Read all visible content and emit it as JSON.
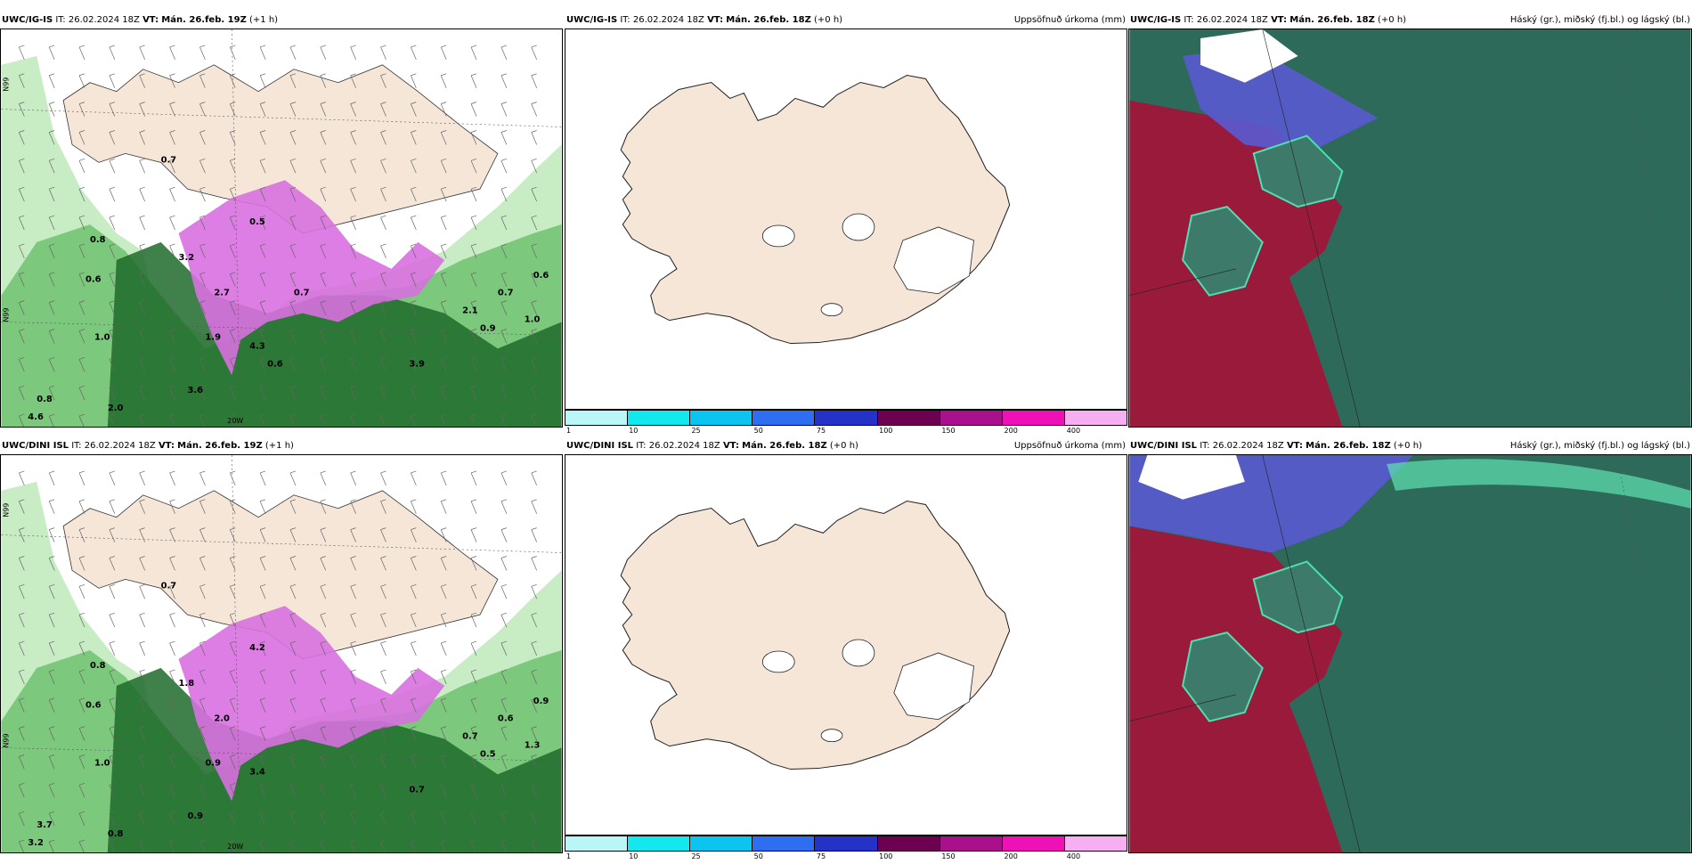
{
  "panels": [
    {
      "id": "ig-precip",
      "model": "UWC/IG-IS",
      "it_label": "IT:",
      "it_value": "26.02.2024 18Z",
      "vt_label": "VT:",
      "vt_value": "Mán. 26.feb. 19Z",
      "lead": "(+1 h)",
      "right_title": ""
    },
    {
      "id": "ig-accum",
      "model": "UWC/IG-IS",
      "it_label": "IT:",
      "it_value": "26.02.2024 18Z",
      "vt_label": "VT:",
      "vt_value": "Mán. 26.feb. 18Z",
      "lead": "(+0 h)",
      "right_title": "Uppsöfnuð úrkoma (mm)"
    },
    {
      "id": "ig-clouds",
      "model": "UWC/IG-IS",
      "it_label": "IT:",
      "it_value": "26.02.2024 18Z",
      "vt_label": "VT:",
      "vt_value": "Mán. 26.feb. 18Z",
      "lead": "(+0 h)",
      "right_title": "Háský (gr.), miðský (fj.bl.) og lágský (bl.)"
    },
    {
      "id": "dini-precip",
      "model": "UWC/DINI ISL",
      "it_label": "IT:",
      "it_value": "26.02.2024 18Z",
      "vt_label": "VT:",
      "vt_value": "Mán. 26.feb. 19Z",
      "lead": "(+1 h)",
      "right_title": ""
    },
    {
      "id": "dini-accum",
      "model": "UWC/DINI ISL",
      "it_label": "IT:",
      "it_value": "26.02.2024 18Z",
      "vt_label": "VT:",
      "vt_value": "Mán. 26.feb. 18Z",
      "lead": "(+0 h)",
      "right_title": "Uppsöfnuð úrkoma (mm)"
    },
    {
      "id": "dini-clouds",
      "model": "UWC/DINI ISL",
      "it_label": "IT:",
      "it_value": "26.02.2024 18Z",
      "vt_label": "VT:",
      "vt_value": "Mán. 26.feb. 18Z",
      "lead": "(+0 h)",
      "right_title": "Háský (gr.), miðský (fj.bl.) og lágský (bl.)"
    }
  ],
  "colorbar": {
    "colors": [
      "#b8f6f8",
      "#12e8ee",
      "#0cc4f0",
      "#2e6ef0",
      "#2432c8",
      "#6e0052",
      "#a8108c",
      "#f010b8",
      "#f6b0f2"
    ],
    "ticks": [
      "1",
      "10",
      "25",
      "50",
      "75",
      "100",
      "150",
      "200",
      "400"
    ]
  },
  "map_labels": {
    "lat_top": "N99",
    "lat_mid": "N99",
    "lon_bottom": "20W",
    "precip_values_top": [
      "0.7",
      "1.0",
      "0.6",
      "0.8",
      "1.9",
      "2.7",
      "3.2",
      "4.3",
      "0.5",
      "0.9",
      "2.1",
      "0.7",
      "0.6",
      "1.0",
      "0.8",
      "4.6",
      "3.9",
      "3.6",
      "2.0",
      "0.7",
      "0.6"
    ],
    "precip_values_bottom": [
      "0.7",
      "1.0",
      "0.6",
      "0.8",
      "0.9",
      "2.0",
      "1.8",
      "3.4",
      "4.2",
      "0.5",
      "0.7",
      "0.6",
      "0.9",
      "1.3",
      "3.7",
      "3.2",
      "0.7",
      "0.9",
      "0.8"
    ]
  },
  "colors": {
    "land": "#f5e6d8",
    "green_light": "#c8ecc4",
    "green_mid": "#7cc87c",
    "green_dark": "#1e6a2a",
    "magenta": "#d870e0",
    "cloud_red": "#9a1a3c",
    "cloud_teal": "#2e6a5a",
    "cloud_blue": "#5a5ad0"
  }
}
